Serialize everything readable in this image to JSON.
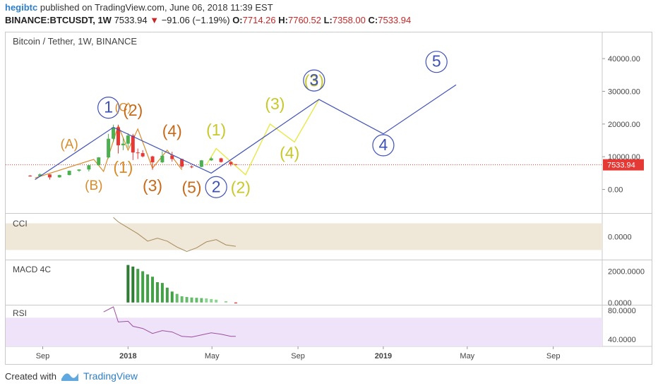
{
  "header": {
    "author": "hegibtc",
    "published_text": "published on TradingView.com, June 06, 2018 11:39 EST"
  },
  "ticker": {
    "symbol": "BINANCE:BTCUSDT, 1W",
    "last": "7533.94",
    "change_arrow": "▼",
    "change": "−91.06 (−1.19%)",
    "o_label": "O:",
    "o": "7714.26",
    "h_label": "H:",
    "h": "7760.52",
    "l_label": "L:",
    "l": "7358.00",
    "c_label": "C:",
    "c": "7533.94"
  },
  "footer": {
    "created_with": "Created with",
    "brand": "TradingView"
  },
  "colors": {
    "up": "#4caf50",
    "down": "#e53935",
    "blue": "#3f51b5",
    "orange": "#d98c2a",
    "yellow": "#c8c82a",
    "dark_orange": "#c76a1a",
    "cci_fill": "#efe7d8",
    "rsi_fill": "#efe3fa",
    "price_line": "#e53935"
  },
  "chart_data": {
    "type": "line",
    "title": "Bitcoin / Tether, 1W, BINANCE",
    "x_ticks": [
      "Sep",
      "2018",
      "May",
      "Sep",
      "2019",
      "May",
      "Sep"
    ],
    "x_tick_dates": [
      "2017-09-01",
      "2018-01-01",
      "2018-05-01",
      "2018-09-01",
      "2019-01-01",
      "2019-05-01",
      "2019-09-01"
    ],
    "x_range": [
      "2017-07-10",
      "2019-11-10"
    ],
    "ylim": [
      -7000,
      48000
    ],
    "y_ticks": [
      "0.00",
      "10000.00",
      "20000.00",
      "30000.00",
      "40000.00"
    ],
    "y_tick_values": [
      0,
      10000,
      20000,
      30000,
      40000
    ],
    "price_label": "7533.94",
    "price_value": 7533.94,
    "candles": [
      {
        "d": "2017-08-14",
        "o": 4200,
        "h": 4400,
        "l": 3900,
        "c": 4100
      },
      {
        "d": "2017-08-28",
        "o": 4100,
        "h": 4900,
        "l": 4000,
        "c": 4600
      },
      {
        "d": "2017-09-11",
        "o": 4600,
        "h": 4700,
        "l": 3000,
        "c": 3700
      },
      {
        "d": "2017-09-25",
        "o": 3700,
        "h": 4500,
        "l": 3600,
        "c": 4400
      },
      {
        "d": "2017-10-09",
        "o": 4400,
        "h": 5800,
        "l": 4300,
        "c": 5700
      },
      {
        "d": "2017-10-23",
        "o": 5700,
        "h": 6200,
        "l": 5400,
        "c": 6100
      },
      {
        "d": "2017-11-06",
        "o": 6100,
        "h": 7600,
        "l": 5500,
        "c": 7400
      },
      {
        "d": "2017-11-20",
        "o": 7400,
        "h": 9900,
        "l": 7300,
        "c": 9800
      },
      {
        "d": "2017-12-04",
        "o": 9800,
        "h": 17000,
        "l": 9500,
        "c": 15500
      },
      {
        "d": "2017-12-11",
        "o": 15500,
        "h": 19800,
        "l": 14500,
        "c": 19000
      },
      {
        "d": "2017-12-18",
        "o": 19000,
        "h": 19800,
        "l": 11000,
        "c": 13500
      },
      {
        "d": "2017-12-25",
        "o": 13500,
        "h": 15800,
        "l": 12000,
        "c": 14000
      },
      {
        "d": "2018-01-01",
        "o": 14000,
        "h": 17200,
        "l": 12800,
        "c": 16500
      },
      {
        "d": "2018-01-08",
        "o": 16500,
        "h": 17000,
        "l": 9000,
        "c": 11300
      },
      {
        "d": "2018-01-15",
        "o": 11300,
        "h": 12500,
        "l": 9300,
        "c": 11100
      },
      {
        "d": "2018-01-22",
        "o": 11100,
        "h": 12000,
        "l": 9800,
        "c": 10100
      },
      {
        "d": "2018-02-05",
        "o": 10100,
        "h": 10300,
        "l": 6000,
        "c": 8300
      },
      {
        "d": "2018-02-19",
        "o": 8300,
        "h": 11700,
        "l": 8000,
        "c": 10300
      },
      {
        "d": "2018-03-05",
        "o": 10300,
        "h": 11500,
        "l": 8500,
        "c": 9300
      },
      {
        "d": "2018-03-19",
        "o": 9300,
        "h": 9400,
        "l": 6500,
        "c": 7000
      },
      {
        "d": "2018-04-02",
        "o": 7000,
        "h": 7400,
        "l": 6500,
        "c": 6900
      },
      {
        "d": "2018-04-16",
        "o": 6900,
        "h": 9000,
        "l": 6800,
        "c": 8900
      },
      {
        "d": "2018-04-30",
        "o": 8900,
        "h": 9900,
        "l": 8700,
        "c": 9500
      },
      {
        "d": "2018-05-14",
        "o": 9500,
        "h": 9700,
        "l": 8200,
        "c": 8400
      },
      {
        "d": "2018-05-28",
        "o": 8400,
        "h": 8700,
        "l": 7100,
        "c": 7700
      },
      {
        "d": "2018-06-04",
        "o": 7714.26,
        "h": 7760.52,
        "l": 7358,
        "c": 7533.94
      }
    ],
    "wave_blue": [
      {
        "d": "2017-08-21",
        "v": 3000
      },
      {
        "d": "2017-12-11",
        "v": 19000
      },
      {
        "d": "2018-04-30",
        "v": 5000
      },
      {
        "d": "2018-10-01",
        "v": 27500
      },
      {
        "d": "2019-01-01",
        "v": 17000
      },
      {
        "d": "2019-04-15",
        "v": 32000
      }
    ],
    "wave_yellow": [
      {
        "d": "2018-04-23",
        "v": 7500
      },
      {
        "d": "2018-05-07",
        "v": 12500
      },
      {
        "d": "2018-06-18",
        "v": 4500
      },
      {
        "d": "2018-07-23",
        "v": 20000
      },
      {
        "d": "2018-08-27",
        "v": 14500
      },
      {
        "d": "2018-10-01",
        "v": 27500
      }
    ],
    "wave_orange": [
      {
        "d": "2017-08-21",
        "v": 3500
      },
      {
        "d": "2017-11-13",
        "v": 9200
      },
      {
        "d": "2017-11-27",
        "v": 5500
      },
      {
        "d": "2017-12-18",
        "v": 19500
      },
      {
        "d": "2018-01-01",
        "v": 12000
      },
      {
        "d": "2018-01-15",
        "v": 18500
      },
      {
        "d": "2018-02-05",
        "v": 6500
      },
      {
        "d": "2018-02-26",
        "v": 12000
      },
      {
        "d": "2018-03-19",
        "v": 6000
      }
    ],
    "labels": [
      {
        "text": "1",
        "d": "2017-12-04",
        "v": 23500,
        "color": "blue",
        "circle": true,
        "size": 20
      },
      {
        "text": "(C)",
        "d": "2017-12-25",
        "v": 24000,
        "color": "orange",
        "size": 14
      },
      {
        "text": "(2)",
        "d": "2018-01-08",
        "v": 22500,
        "color": "dark_orange",
        "size": 20
      },
      {
        "text": "(4)",
        "d": "2018-03-05",
        "v": 16200,
        "color": "dark_orange",
        "size": 20
      },
      {
        "text": "(A)",
        "d": "2017-10-09",
        "v": 12500,
        "color": "orange",
        "size": 16
      },
      {
        "text": "(B)",
        "d": "2017-11-13",
        "v": -100,
        "color": "orange",
        "size": 16
      },
      {
        "text": "(1)",
        "d": "2017-12-25",
        "v": 5100,
        "color": "orange",
        "size": 20
      },
      {
        "text": "(3)",
        "d": "2018-02-05",
        "v": -500,
        "color": "dark_orange",
        "size": 20
      },
      {
        "text": "(5)",
        "d": "2018-04-02",
        "v": -1100,
        "color": "dark_orange",
        "size": 20
      },
      {
        "text": "2",
        "d": "2018-05-07",
        "v": -800,
        "color": "blue",
        "circle": true,
        "size": 20
      },
      {
        "text": "(1)",
        "d": "2018-05-07",
        "v": 16500,
        "color": "yellow",
        "size": 20
      },
      {
        "text": "(2)",
        "d": "2018-06-11",
        "v": -1100,
        "color": "yellow",
        "size": 20
      },
      {
        "text": "(3)",
        "d": "2018-07-30",
        "v": 24500,
        "color": "yellow",
        "size": 20
      },
      {
        "text": "(4)",
        "d": "2018-08-20",
        "v": 9500,
        "color": "yellow",
        "size": 20
      },
      {
        "text": "(3)",
        "d": "2018-09-24",
        "v": 31500,
        "color": "yellow",
        "size": 20
      },
      {
        "text": "3",
        "d": "2018-09-24",
        "v": 31800,
        "color": "blue",
        "circle": true,
        "size": 20
      },
      {
        "text": "4",
        "d": "2019-01-01",
        "v": 12000,
        "color": "blue",
        "circle": true,
        "size": 20
      },
      {
        "text": "5",
        "d": "2019-03-18",
        "v": 37500,
        "color": "blue",
        "circle": true,
        "size": 20
      }
    ],
    "cci": {
      "label": "CCI",
      "y_ticks": [
        "0.0000"
      ],
      "y_tick_values": [
        0
      ],
      "ylim": [
        -300,
        300
      ],
      "band": [
        -180,
        180
      ],
      "points": [
        {
          "d": "2017-12-11",
          "v": 260
        },
        {
          "d": "2017-12-18",
          "v": 200
        },
        {
          "d": "2018-01-01",
          "v": 120
        },
        {
          "d": "2018-01-15",
          "v": 40
        },
        {
          "d": "2018-01-29",
          "v": -60
        },
        {
          "d": "2018-02-12",
          "v": -20
        },
        {
          "d": "2018-02-26",
          "v": -60
        },
        {
          "d": "2018-03-12",
          "v": -140
        },
        {
          "d": "2018-03-26",
          "v": -200
        },
        {
          "d": "2018-04-09",
          "v": -150
        },
        {
          "d": "2018-04-23",
          "v": -70
        },
        {
          "d": "2018-05-07",
          "v": -40
        },
        {
          "d": "2018-05-21",
          "v": -110
        },
        {
          "d": "2018-06-04",
          "v": -130
        }
      ]
    },
    "macd": {
      "label": "MACD 4C",
      "y_ticks": [
        "0.0000",
        "2000.0000"
      ],
      "y_tick_values": [
        0,
        2000
      ],
      "ylim": [
        -100,
        2700
      ],
      "bars": [
        {
          "d": "2018-01-01",
          "v": 2400,
          "c": "#2e7d32"
        },
        {
          "d": "2018-01-08",
          "v": 2300,
          "c": "#2e7d32"
        },
        {
          "d": "2018-01-15",
          "v": 2150,
          "c": "#43a047"
        },
        {
          "d": "2018-01-22",
          "v": 2000,
          "c": "#43a047"
        },
        {
          "d": "2018-01-29",
          "v": 1800,
          "c": "#43a047"
        },
        {
          "d": "2018-02-05",
          "v": 1650,
          "c": "#43a047"
        },
        {
          "d": "2018-02-12",
          "v": 1300,
          "c": "#43a047"
        },
        {
          "d": "2018-02-19",
          "v": 1250,
          "c": "#43a047"
        },
        {
          "d": "2018-02-26",
          "v": 950,
          "c": "#43a047"
        },
        {
          "d": "2018-03-05",
          "v": 700,
          "c": "#43a047"
        },
        {
          "d": "2018-03-12",
          "v": 550,
          "c": "#66bb6a"
        },
        {
          "d": "2018-03-19",
          "v": 400,
          "c": "#66bb6a"
        },
        {
          "d": "2018-03-26",
          "v": 350,
          "c": "#66bb6a"
        },
        {
          "d": "2018-04-02",
          "v": 320,
          "c": "#66bb6a"
        },
        {
          "d": "2018-04-09",
          "v": 300,
          "c": "#66bb6a"
        },
        {
          "d": "2018-04-16",
          "v": 280,
          "c": "#66bb6a"
        },
        {
          "d": "2018-04-23",
          "v": 260,
          "c": "#8bd48f"
        },
        {
          "d": "2018-04-30",
          "v": 220,
          "c": "#8bd48f"
        },
        {
          "d": "2018-05-07",
          "v": 180,
          "c": "#8bd48f"
        },
        {
          "d": "2018-05-21",
          "v": 80,
          "c": "#8bd48f"
        },
        {
          "d": "2018-06-04",
          "v": -60,
          "c": "#e53935"
        }
      ]
    },
    "rsi": {
      "label": "RSI",
      "y_ticks": [
        "40.0000",
        "80.0000"
      ],
      "y_tick_values": [
        40,
        80
      ],
      "ylim": [
        30,
        87
      ],
      "band": [
        30,
        70
      ],
      "points": [
        {
          "d": "2017-11-27",
          "v": 78
        },
        {
          "d": "2017-12-11",
          "v": 85
        },
        {
          "d": "2017-12-18",
          "v": 64
        },
        {
          "d": "2018-01-01",
          "v": 65
        },
        {
          "d": "2018-01-08",
          "v": 58
        },
        {
          "d": "2018-01-22",
          "v": 55
        },
        {
          "d": "2018-02-05",
          "v": 48
        },
        {
          "d": "2018-02-19",
          "v": 52
        },
        {
          "d": "2018-03-05",
          "v": 50
        },
        {
          "d": "2018-03-19",
          "v": 44
        },
        {
          "d": "2018-04-02",
          "v": 43
        },
        {
          "d": "2018-04-16",
          "v": 46
        },
        {
          "d": "2018-04-30",
          "v": 49
        },
        {
          "d": "2018-05-14",
          "v": 47
        },
        {
          "d": "2018-05-28",
          "v": 44
        },
        {
          "d": "2018-06-04",
          "v": 44
        }
      ]
    }
  }
}
